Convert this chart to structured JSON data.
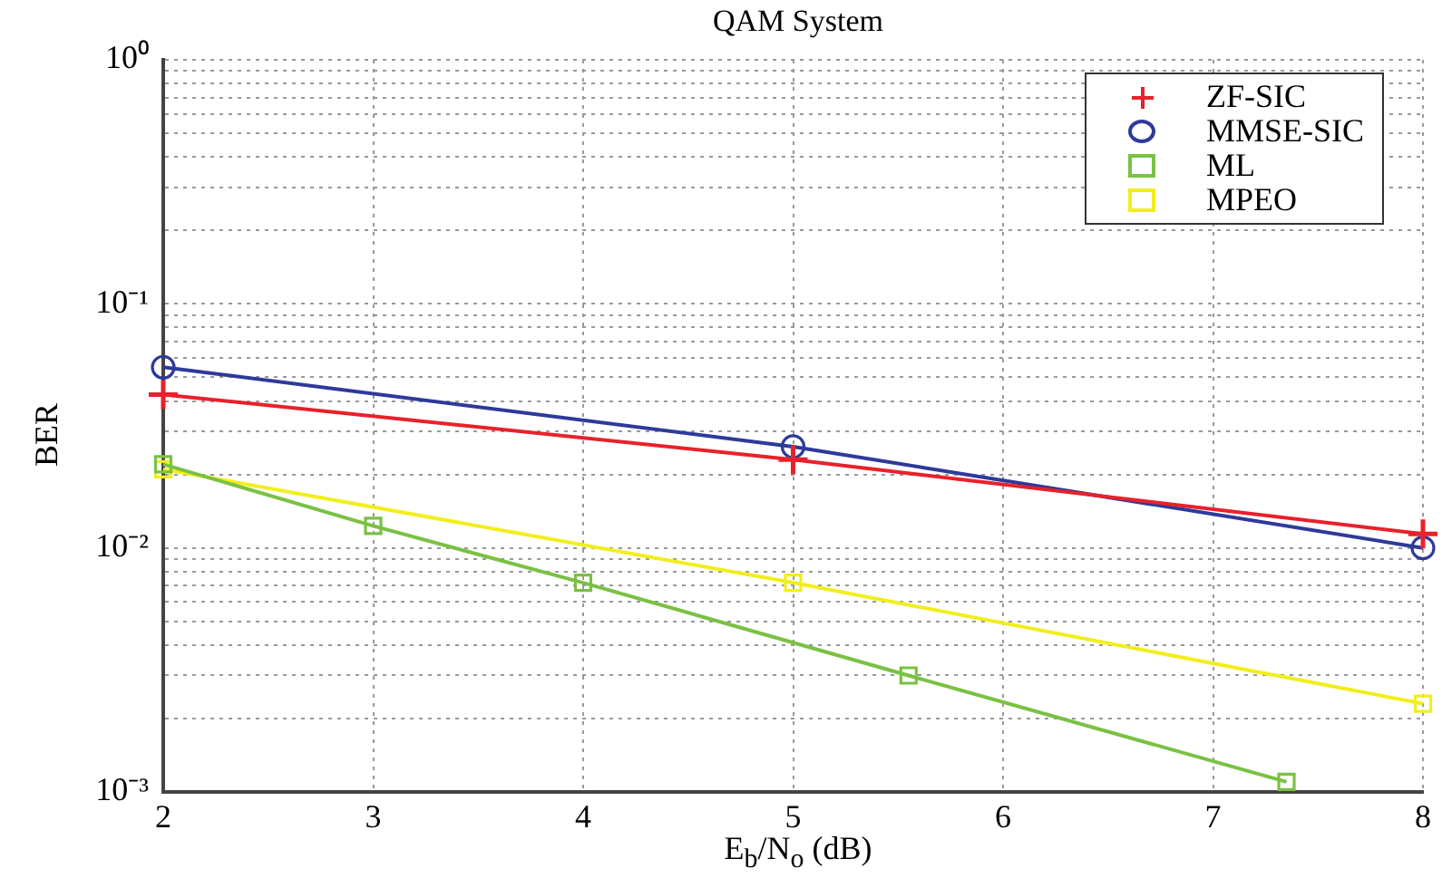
{
  "chart_data": {
    "type": "line",
    "title": "QAM System",
    "xlabel": "E$_{b}$/N$_{o}$ (dB)",
    "ylabel": "BER",
    "log": "y",
    "grid": true,
    "legend": "top right",
    "line_style": "solid",
    "xlim": [
      2,
      8
    ],
    "xticks": [
      2,
      3,
      4,
      5,
      6,
      7,
      8
    ],
    "ylim": [
      0.001,
      1
    ],
    "yticks": [
      {
        "value": 0.001,
        "label": "10⁻³"
      },
      {
        "value": 0.002,
        "label": null
      },
      {
        "value": 0.003,
        "label": null
      },
      {
        "value": 0.004,
        "label": null
      },
      {
        "value": 0.005,
        "label": null
      },
      {
        "value": 0.006,
        "label": null
      },
      {
        "value": 0.007,
        "label": null
      },
      {
        "value": 0.008,
        "label": null
      },
      {
        "value": 0.009,
        "label": null
      },
      {
        "value": 0.01,
        "label": "10⁻²"
      },
      {
        "value": 0.02,
        "label": null
      },
      {
        "value": 0.03,
        "label": null
      },
      {
        "value": 0.04,
        "label": null
      },
      {
        "value": 0.05,
        "label": null
      },
      {
        "value": 0.06,
        "label": null
      },
      {
        "value": 0.07,
        "label": null
      },
      {
        "value": 0.08,
        "label": null
      },
      {
        "value": 0.09,
        "label": null
      },
      {
        "value": 0.1,
        "label": "10⁻¹"
      },
      {
        "value": 0.2,
        "label": null
      },
      {
        "value": 0.3,
        "label": null
      },
      {
        "value": 0.4,
        "label": null
      },
      {
        "value": 0.5,
        "label": null
      },
      {
        "value": 0.6,
        "label": null
      },
      {
        "value": 0.7,
        "label": null
      },
      {
        "value": 0.8,
        "label": null
      },
      {
        "value": 0.9,
        "label": null
      },
      {
        "value": 1,
        "label": "10⁰"
      }
    ],
    "series": [
      {
        "name": "ZF-SIC",
        "color": "#e8212b",
        "marker": "cross",
        "x": [
          2,
          5,
          8
        ],
        "values": [
          0.0425,
          0.023,
          0.0114
        ]
      },
      {
        "name": "MMSE-SIC",
        "color": "#2e3a9a",
        "marker": "circle",
        "x": [
          2,
          5,
          8
        ],
        "values": [
          0.055,
          0.026,
          0.01
        ]
      },
      {
        "name": "ML",
        "color": "#7ac143",
        "marker": "square",
        "x": [
          2,
          3,
          4,
          5.55,
          7.35
        ],
        "values": [
          0.022,
          0.0123,
          0.0072,
          0.003,
          0.0011
        ]
      },
      {
        "name": "MPEO",
        "color": "#f2ee1c",
        "marker": "square",
        "x": [
          2,
          5,
          8
        ],
        "values": [
          0.021,
          0.0072,
          0.0023
        ]
      }
    ]
  }
}
